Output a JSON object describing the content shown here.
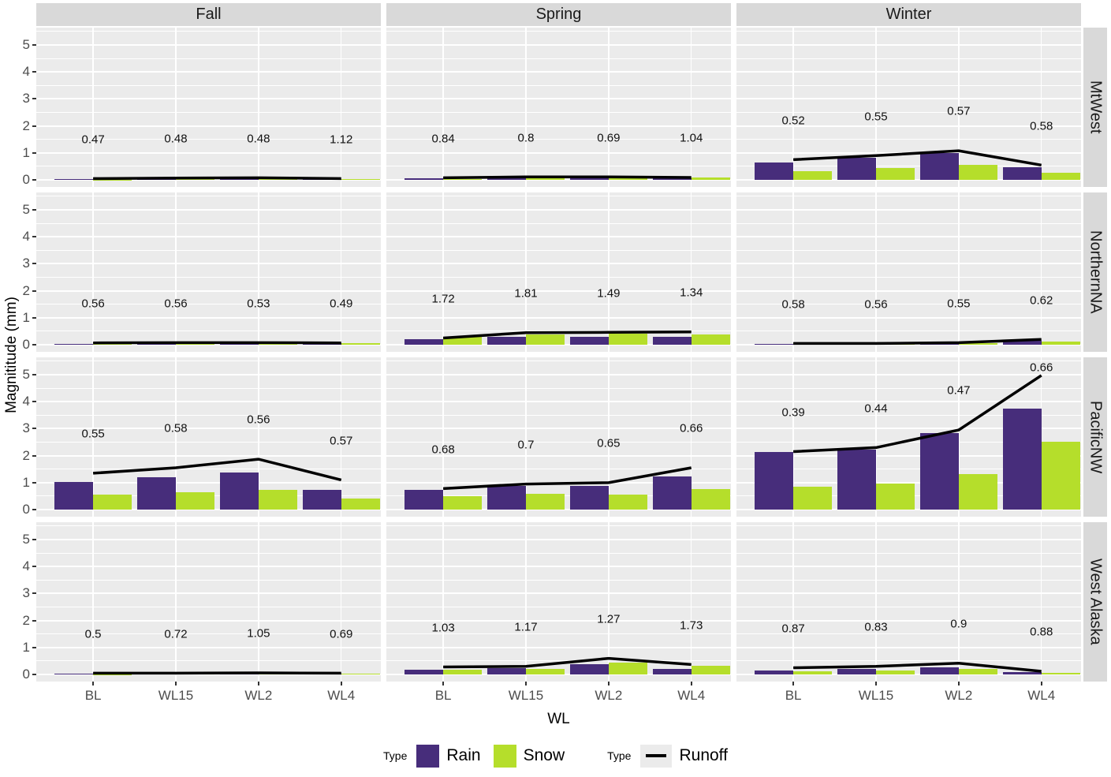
{
  "chart_data": {
    "type": "bar",
    "subtype": "faceted grouped bars with overlaid runoff line",
    "title": "",
    "xlabel": "WL",
    "ylabel": "Magnititude (mm)",
    "categories": [
      "BL",
      "WL15",
      "WL2",
      "WL4"
    ],
    "col_facets": [
      "Fall",
      "Spring",
      "Winter"
    ],
    "row_facets": [
      "MtWest",
      "NorthernNA",
      "PacificNW",
      "West Alaska"
    ],
    "yticks": [
      0,
      1,
      2,
      3,
      4,
      5
    ],
    "ylim": [
      0,
      5
    ],
    "grid": true,
    "legend_position": "bottom",
    "series_colors": {
      "rain": "#472d7b",
      "snow": "#b5de2b",
      "runoff": "#000000"
    },
    "panels": [
      {
        "row": "MtWest",
        "col": "Fall",
        "value_labels": [
          "0.47",
          "0.48",
          "0.48",
          "1.12"
        ],
        "rain": [
          0.02,
          0.03,
          0.03,
          0.02
        ],
        "snow": [
          0.01,
          0.02,
          0.02,
          0.04
        ],
        "runoff": [
          0.05,
          0.07,
          0.08,
          0.05
        ]
      },
      {
        "row": "MtWest",
        "col": "Spring",
        "value_labels": [
          "0.84",
          "0.8",
          "0.69",
          "1.04"
        ],
        "rain": [
          0.07,
          0.08,
          0.09,
          0.05
        ],
        "snow": [
          0.04,
          0.06,
          0.07,
          0.08
        ],
        "runoff": [
          0.08,
          0.11,
          0.11,
          0.09
        ]
      },
      {
        "row": "MtWest",
        "col": "Winter",
        "value_labels": [
          "0.52",
          "0.55",
          "0.57",
          "0.58"
        ],
        "rain": [
          0.64,
          0.82,
          1.0,
          0.47
        ],
        "snow": [
          0.33,
          0.44,
          0.57,
          0.26
        ],
        "runoff": [
          0.75,
          0.9,
          1.08,
          0.55
        ]
      },
      {
        "row": "NorthernNA",
        "col": "Fall",
        "value_labels": [
          "0.56",
          "0.56",
          "0.53",
          "0.49"
        ],
        "rain": [
          0.04,
          0.05,
          0.06,
          0.05
        ],
        "snow": [
          0.02,
          0.04,
          0.05,
          0.05
        ],
        "runoff": [
          0.07,
          0.08,
          0.08,
          0.07
        ]
      },
      {
        "row": "NorthernNA",
        "col": "Spring",
        "value_labels": [
          "1.72",
          "1.81",
          "1.49",
          "1.34"
        ],
        "rain": [
          0.22,
          0.29,
          0.3,
          0.3
        ],
        "snow": [
          0.3,
          0.38,
          0.42,
          0.38
        ],
        "runoff": [
          0.25,
          0.45,
          0.46,
          0.48
        ]
      },
      {
        "row": "NorthernNA",
        "col": "Winter",
        "value_labels": [
          "0.58",
          "0.56",
          "0.55",
          "0.62"
        ],
        "rain": [
          0.03,
          0.03,
          0.05,
          0.16
        ],
        "snow": [
          0.02,
          0.02,
          0.06,
          0.12
        ],
        "runoff": [
          0.05,
          0.05,
          0.08,
          0.2
        ]
      },
      {
        "row": "PacificNW",
        "col": "Fall",
        "value_labels": [
          "0.55",
          "0.58",
          "0.56",
          "0.57"
        ],
        "rain": [
          1.03,
          1.2,
          1.37,
          0.74
        ],
        "snow": [
          0.57,
          0.66,
          0.74,
          0.4
        ],
        "runoff": [
          1.35,
          1.55,
          1.87,
          1.1
        ]
      },
      {
        "row": "PacificNW",
        "col": "Spring",
        "value_labels": [
          "0.68",
          "0.7",
          "0.65",
          "0.66"
        ],
        "rain": [
          0.72,
          0.89,
          0.89,
          1.23
        ],
        "snow": [
          0.49,
          0.6,
          0.57,
          0.77
        ],
        "runoff": [
          0.78,
          0.95,
          1.0,
          1.55
        ]
      },
      {
        "row": "PacificNW",
        "col": "Winter",
        "value_labels": [
          "0.39",
          "0.44",
          "0.47",
          "0.66"
        ],
        "rain": [
          2.14,
          2.23,
          2.83,
          3.74
        ],
        "snow": [
          0.86,
          0.97,
          1.31,
          2.51
        ],
        "runoff": [
          2.15,
          2.3,
          2.95,
          4.97
        ]
      },
      {
        "row": "West Alaska",
        "col": "Fall",
        "value_labels": [
          "0.5",
          "0.72",
          "1.05",
          "0.69"
        ],
        "rain": [
          0.02,
          0.02,
          0.03,
          0.02
        ],
        "snow": [
          0.01,
          0.02,
          0.02,
          0.02
        ],
        "runoff": [
          0.05,
          0.05,
          0.06,
          0.05
        ]
      },
      {
        "row": "West Alaska",
        "col": "Spring",
        "value_labels": [
          "1.03",
          "1.17",
          "1.27",
          "1.73"
        ],
        "rain": [
          0.18,
          0.23,
          0.37,
          0.2
        ],
        "snow": [
          0.17,
          0.2,
          0.45,
          0.31
        ],
        "runoff": [
          0.28,
          0.3,
          0.6,
          0.37
        ]
      },
      {
        "row": "West Alaska",
        "col": "Winter",
        "value_labels": [
          "0.87",
          "0.83",
          "0.9",
          "0.88"
        ],
        "rain": [
          0.15,
          0.2,
          0.27,
          0.08
        ],
        "snow": [
          0.12,
          0.15,
          0.2,
          0.06
        ],
        "runoff": [
          0.25,
          0.3,
          0.42,
          0.12
        ]
      }
    ]
  },
  "legend": {
    "fill_title": "Type",
    "rain_label": "Rain",
    "snow_label": "Snow",
    "line_title": "Type",
    "runoff_label": "Runoff"
  },
  "colors": {
    "panel_bg": "#ebebeb",
    "strip_bg": "#d9d9d9",
    "gridline": "#ffffff",
    "tick_label": "#4d4d4d",
    "text": "#000000"
  }
}
